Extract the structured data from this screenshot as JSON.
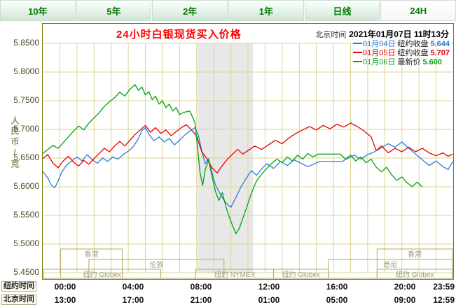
{
  "tabs": [
    {
      "label": "10年"
    },
    {
      "label": "5年"
    },
    {
      "label": "2年"
    },
    {
      "label": "1年"
    },
    {
      "label": "日线"
    },
    {
      "label": "24H"
    }
  ],
  "header": {
    "title": "24小时白银现货买入价格",
    "clock_label": "北京时间",
    "clock_value": "2021年01月07日 11时13分"
  },
  "y_axis": {
    "unit": "人民币/克",
    "labels": [
      "5.8500",
      "5.8000",
      "5.7500",
      "5.7000",
      "5.6500",
      "5.6000",
      "5.5500",
      "5.5000",
      "5.4500"
    ]
  },
  "x_axis": {
    "rows": [
      {
        "label": "纽约时间",
        "ticks": [
          "00:00",
          "04:00",
          "08:00",
          "12:00",
          "16:00",
          "20:00",
          "23:59"
        ]
      },
      {
        "label": "北京时间",
        "ticks": [
          "13:00",
          "17:00",
          "21:00",
          "01:00",
          "05:00",
          "09:00",
          "12:59"
        ]
      }
    ]
  },
  "legend": [
    {
      "date": "01月04日",
      "desc": "纽约收盘",
      "value": "5.644",
      "color": "#2e7bdf"
    },
    {
      "date": "01月05日",
      "desc": "纽约收盘",
      "value": "5.707",
      "color": "#e60000"
    },
    {
      "date": "01月06日",
      "desc": "最新价",
      "value": "5.600",
      "color": "#00a313"
    }
  ],
  "chart_data": {
    "type": "line",
    "title": "24小时白银现货买入价格",
    "ylabel": "人民币/克",
    "ylim": [
      5.45,
      5.85
    ],
    "xlim_hours": [
      0,
      24
    ],
    "y_ticks": [
      5.85,
      5.8,
      5.75,
      5.7,
      5.65,
      5.6,
      5.55,
      5.5,
      5.45
    ],
    "x_tick_hours": [
      0,
      4,
      8,
      12,
      16,
      20,
      24
    ],
    "highlight_band_hours": [
      9.05,
      12.3
    ],
    "colors": {
      "grid": "#dbd493",
      "band": "#e8e8e8",
      "border": "#787800",
      "session_border": "#b3ab63",
      "session_text": "#9a9a85"
    },
    "sessions": [
      {
        "label": "香港",
        "start_h": 1.05,
        "end_h": 4.65,
        "row": 1
      },
      {
        "label": "伦敦",
        "start_h": 2.7,
        "end_h": 10.6,
        "row": 2
      },
      {
        "label": "纽约 Globex",
        "start_h": 0.05,
        "end_h": 6.9,
        "row": 3
      },
      {
        "label": "纽约 NYMEX",
        "start_h": 8.95,
        "end_h": 13.5,
        "row": 3
      },
      {
        "label": "纽约 Globex",
        "start_h": 13.5,
        "end_h": 16.7,
        "row": 3
      },
      {
        "label": "悉尼",
        "start_h": 16.7,
        "end_h": 23.95,
        "row": 2
      },
      {
        "label": "香港",
        "start_h": 19.55,
        "end_h": 23.95,
        "row": 1
      },
      {
        "label": "纽约 Globex",
        "start_h": 19.55,
        "end_h": 23.95,
        "row": 3
      }
    ],
    "series": [
      {
        "name": "01月04日 纽约收盘",
        "close": 5.644,
        "color": "#2e7bdf",
        "points": [
          [
            0,
            5.627
          ],
          [
            0.3,
            5.615
          ],
          [
            0.5,
            5.603
          ],
          [
            0.7,
            5.598
          ],
          [
            0.9,
            5.61
          ],
          [
            1.1,
            5.625
          ],
          [
            1.4,
            5.638
          ],
          [
            1.7,
            5.645
          ],
          [
            2,
            5.652
          ],
          [
            2.3,
            5.645
          ],
          [
            2.6,
            5.656
          ],
          [
            2.9,
            5.647
          ],
          [
            3.2,
            5.641
          ],
          [
            3.5,
            5.65
          ],
          [
            3.8,
            5.644
          ],
          [
            4.1,
            5.652
          ],
          [
            4.4,
            5.648
          ],
          [
            4.7,
            5.656
          ],
          [
            5,
            5.662
          ],
          [
            5.3,
            5.67
          ],
          [
            5.6,
            5.684
          ],
          [
            5.8,
            5.698
          ],
          [
            6,
            5.703
          ],
          [
            6.2,
            5.692
          ],
          [
            6.5,
            5.68
          ],
          [
            6.8,
            5.687
          ],
          [
            7.1,
            5.678
          ],
          [
            7.4,
            5.684
          ],
          [
            7.7,
            5.673
          ],
          [
            8,
            5.681
          ],
          [
            8.3,
            5.69
          ],
          [
            8.6,
            5.697
          ],
          [
            8.9,
            5.703
          ],
          [
            9.1,
            5.69
          ],
          [
            9.3,
            5.662
          ],
          [
            9.5,
            5.64
          ],
          [
            9.7,
            5.649
          ],
          [
            9.9,
            5.625
          ],
          [
            10.1,
            5.603
          ],
          [
            10.4,
            5.586
          ],
          [
            10.7,
            5.572
          ],
          [
            11,
            5.564
          ],
          [
            11.3,
            5.582
          ],
          [
            11.6,
            5.6
          ],
          [
            11.9,
            5.615
          ],
          [
            12.2,
            5.628
          ],
          [
            12.5,
            5.62
          ],
          [
            12.8,
            5.631
          ],
          [
            13.1,
            5.64
          ],
          [
            13.5,
            5.632
          ],
          [
            13.9,
            5.644
          ],
          [
            14.3,
            5.637
          ],
          [
            14.7,
            5.647
          ],
          [
            15.1,
            5.641
          ],
          [
            15.5,
            5.635
          ],
          [
            15.9,
            5.64
          ],
          [
            16.2,
            5.644
          ],
          [
            17.5,
            5.644
          ],
          [
            17.8,
            5.649
          ],
          [
            18.2,
            5.655
          ],
          [
            18.6,
            5.648
          ],
          [
            19,
            5.656
          ],
          [
            19.4,
            5.661
          ],
          [
            19.8,
            5.668
          ],
          [
            20.2,
            5.675
          ],
          [
            20.6,
            5.669
          ],
          [
            21,
            5.678
          ],
          [
            21.4,
            5.667
          ],
          [
            21.8,
            5.657
          ],
          [
            22.2,
            5.647
          ],
          [
            22.6,
            5.637
          ],
          [
            23,
            5.645
          ],
          [
            23.4,
            5.635
          ],
          [
            23.7,
            5.63
          ],
          [
            23.98,
            5.644
          ]
        ]
      },
      {
        "name": "01月05日 纽约收盘",
        "close": 5.707,
        "color": "#e60000",
        "points": [
          [
            0,
            5.649
          ],
          [
            0.3,
            5.656
          ],
          [
            0.6,
            5.641
          ],
          [
            0.9,
            5.633
          ],
          [
            1.2,
            5.645
          ],
          [
            1.5,
            5.653
          ],
          [
            1.8,
            5.643
          ],
          [
            2.1,
            5.636
          ],
          [
            2.4,
            5.646
          ],
          [
            2.7,
            5.639
          ],
          [
            3,
            5.649
          ],
          [
            3.3,
            5.658
          ],
          [
            3.6,
            5.667
          ],
          [
            3.9,
            5.661
          ],
          [
            4.2,
            5.671
          ],
          [
            4.5,
            5.679
          ],
          [
            4.8,
            5.671
          ],
          [
            5.1,
            5.681
          ],
          [
            5.4,
            5.691
          ],
          [
            5.7,
            5.699
          ],
          [
            6,
            5.707
          ],
          [
            6.3,
            5.695
          ],
          [
            6.6,
            5.703
          ],
          [
            6.9,
            5.693
          ],
          [
            7.2,
            5.699
          ],
          [
            7.5,
            5.689
          ],
          [
            7.8,
            5.696
          ],
          [
            8.1,
            5.703
          ],
          [
            8.4,
            5.708
          ],
          [
            8.7,
            5.699
          ],
          [
            9,
            5.688
          ],
          [
            9.3,
            5.661
          ],
          [
            9.6,
            5.649
          ],
          [
            9.9,
            5.633
          ],
          [
            10.2,
            5.624
          ],
          [
            10.5,
            5.637
          ],
          [
            10.8,
            5.648
          ],
          [
            11.1,
            5.657
          ],
          [
            11.4,
            5.665
          ],
          [
            11.7,
            5.657
          ],
          [
            12,
            5.663
          ],
          [
            12.4,
            5.671
          ],
          [
            12.8,
            5.665
          ],
          [
            13.2,
            5.673
          ],
          [
            13.6,
            5.681
          ],
          [
            14,
            5.675
          ],
          [
            14.4,
            5.685
          ],
          [
            14.8,
            5.693
          ],
          [
            15.2,
            5.699
          ],
          [
            15.6,
            5.705
          ],
          [
            16,
            5.699
          ],
          [
            16.4,
            5.707
          ],
          [
            16.8,
            5.701
          ],
          [
            17.2,
            5.709
          ],
          [
            17.6,
            5.704
          ],
          [
            18,
            5.711
          ],
          [
            18.4,
            5.705
          ],
          [
            18.8,
            5.697
          ],
          [
            19.2,
            5.687
          ],
          [
            19.5,
            5.663
          ],
          [
            19.8,
            5.671
          ],
          [
            20.2,
            5.659
          ],
          [
            20.6,
            5.667
          ],
          [
            21,
            5.661
          ],
          [
            21.4,
            5.669
          ],
          [
            21.8,
            5.661
          ],
          [
            22.2,
            5.667
          ],
          [
            22.6,
            5.659
          ],
          [
            23,
            5.654
          ],
          [
            23.4,
            5.659
          ],
          [
            23.7,
            5.653
          ],
          [
            23.98,
            5.657
          ]
        ]
      },
      {
        "name": "01月06日 最新价",
        "close": 5.6,
        "color": "#00a313",
        "points": [
          [
            0,
            5.658
          ],
          [
            0.3,
            5.665
          ],
          [
            0.6,
            5.672
          ],
          [
            0.9,
            5.667
          ],
          [
            1.2,
            5.677
          ],
          [
            1.5,
            5.687
          ],
          [
            1.8,
            5.697
          ],
          [
            2.1,
            5.706
          ],
          [
            2.4,
            5.699
          ],
          [
            2.7,
            5.711
          ],
          [
            3,
            5.72
          ],
          [
            3.3,
            5.729
          ],
          [
            3.6,
            5.74
          ],
          [
            3.9,
            5.748
          ],
          [
            4.2,
            5.755
          ],
          [
            4.5,
            5.765
          ],
          [
            4.8,
            5.758
          ],
          [
            5.1,
            5.77
          ],
          [
            5.4,
            5.778
          ],
          [
            5.6,
            5.768
          ],
          [
            5.8,
            5.774
          ],
          [
            6,
            5.76
          ],
          [
            6.2,
            5.766
          ],
          [
            6.4,
            5.752
          ],
          [
            6.6,
            5.758
          ],
          [
            6.8,
            5.744
          ],
          [
            7,
            5.75
          ],
          [
            7.2,
            5.738
          ],
          [
            7.4,
            5.744
          ],
          [
            7.6,
            5.732
          ],
          [
            7.8,
            5.738
          ],
          [
            8,
            5.726
          ],
          [
            8.3,
            5.73
          ],
          [
            8.6,
            5.732
          ],
          [
            8.9,
            5.712
          ],
          [
            9.05,
            5.668
          ],
          [
            9.2,
            5.625
          ],
          [
            9.35,
            5.602
          ],
          [
            9.5,
            5.63
          ],
          [
            9.7,
            5.646
          ],
          [
            9.9,
            5.618
          ],
          [
            10.1,
            5.592
          ],
          [
            10.3,
            5.576
          ],
          [
            10.5,
            5.59
          ],
          [
            10.7,
            5.566
          ],
          [
            10.9,
            5.548
          ],
          [
            11.1,
            5.532
          ],
          [
            11.3,
            5.518
          ],
          [
            11.5,
            5.528
          ],
          [
            11.7,
            5.545
          ],
          [
            11.9,
            5.562
          ],
          [
            12.1,
            5.58
          ],
          [
            12.3,
            5.596
          ],
          [
            12.5,
            5.61
          ],
          [
            12.8,
            5.622
          ],
          [
            13.1,
            5.632
          ],
          [
            13.4,
            5.641
          ],
          [
            13.7,
            5.648
          ],
          [
            14,
            5.642
          ],
          [
            14.3,
            5.652
          ],
          [
            14.6,
            5.645
          ],
          [
            14.9,
            5.655
          ],
          [
            15.2,
            5.648
          ],
          [
            15.5,
            5.658
          ],
          [
            15.8,
            5.652
          ],
          [
            16.1,
            5.657
          ],
          [
            17.4,
            5.657
          ],
          [
            17.7,
            5.648
          ],
          [
            18,
            5.655
          ],
          [
            18.3,
            5.645
          ],
          [
            18.6,
            5.652
          ],
          [
            18.9,
            5.642
          ],
          [
            19.2,
            5.648
          ],
          [
            19.5,
            5.634
          ],
          [
            19.8,
            5.626
          ],
          [
            20.1,
            5.634
          ],
          [
            20.4,
            5.621
          ],
          [
            20.7,
            5.611
          ],
          [
            21,
            5.617
          ],
          [
            21.3,
            5.607
          ],
          [
            21.6,
            5.6
          ],
          [
            21.9,
            5.608
          ],
          [
            22.1,
            5.602
          ],
          [
            22.2,
            5.6
          ]
        ]
      }
    ]
  }
}
